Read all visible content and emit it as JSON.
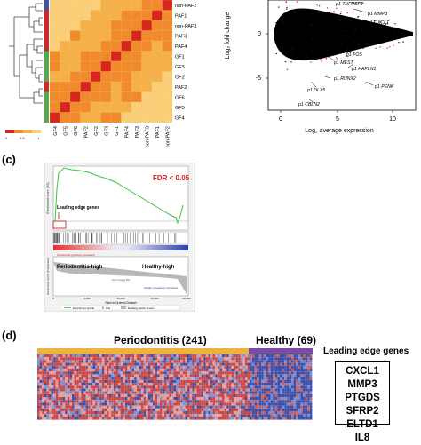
{
  "heatmap_a": {
    "labels": [
      "non-PAF2",
      "PAF1",
      "non-PAF3",
      "PAF3",
      "PAF4",
      "GF1",
      "GF3",
      "GF2",
      "PAF2",
      "GF6",
      "GF5",
      "GF4"
    ],
    "col_labels": [
      "GF4",
      "GF5",
      "GF6",
      "PAF2",
      "GF2",
      "GF3",
      "GF1",
      "PAF4",
      "PAF3",
      "non-PAF3",
      "PAF1",
      "non-PAF2"
    ],
    "colors": {
      "diag": "#d7261e",
      "high": "#f08a2a",
      "mid": "#f6b04a",
      "low": "#f9cf78"
    },
    "side_colors": [
      "#3a55a4",
      "#cc2a2a",
      "#cc2a2a",
      "#cc2a2a",
      "#cc2a2a",
      "#5aa84c",
      "#5aa84c",
      "#5aa84c",
      "#cc2a2a",
      "#5aa84c",
      "#5aa84c",
      "#5aa84c"
    ]
  },
  "ma_plot": {
    "y_label": "Log₂ fold change",
    "x_label": "Log₂ average expression",
    "y_ticks": [
      "0",
      "-5"
    ],
    "x_ticks": [
      "0",
      "5",
      "10"
    ],
    "genes_up": [
      "p1 TNFRSF9",
      "p1 MMP3",
      "p1 ICAM1",
      "p1 CXCL1"
    ],
    "genes_down": [
      "p1 FOS",
      "p1 MEST",
      "p1 HAPLN1",
      "p1 RUNX2",
      "p1 DLX5",
      "p1 PENK",
      "p1 CBLN2"
    ]
  },
  "panel_c": {
    "label": "(c)",
    "fdr": "FDR < 0.05",
    "leading_edge": "Leading edge genes",
    "left_group": "Periodontitis-high",
    "right_group": "Healthy-high",
    "x_axis": "Rank in Ordered Dataset",
    "y_axis_top": "Enrichment score (ES)",
    "y_axis_bottom": "Ranked list metric (PreRanked)",
    "zero_cross": "Zero cross at 993",
    "pos_label": "Periodontitis (positively correlated)",
    "neg_label": "Healthy (negatively correlated)",
    "x_ticks": [
      "0",
      "5,000",
      "10,000",
      "15,000",
      "20,000"
    ],
    "legend": [
      "Enrichment profile",
      "Hits",
      "Ranking metric scores"
    ]
  },
  "panel_d": {
    "label": "(d)",
    "group1": "Periodontitis (241)",
    "group2": "Healthy (69)",
    "leading_title": "Leading edge genes",
    "genes": [
      "CXCL1",
      "MMP3",
      "PTGDS",
      "SFRP2",
      "ELTD1",
      "IL8"
    ]
  },
  "scale_labels": [
    "0",
    "0.5",
    "1"
  ]
}
